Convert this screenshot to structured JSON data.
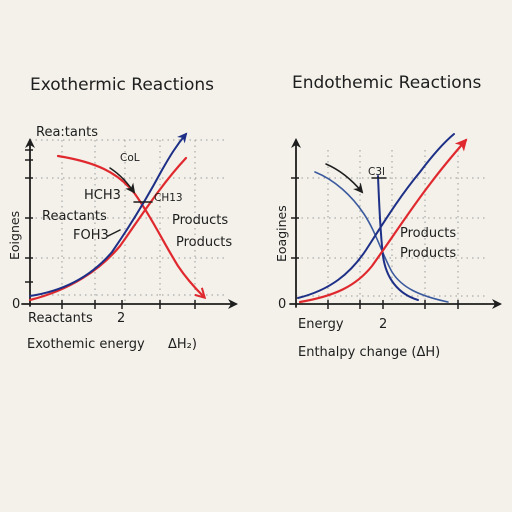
{
  "left_panel": {
    "title": "Exothermic Reactions",
    "top_label": "Rea:tants",
    "y_axis_label": "Eoignes",
    "origin_label": "0",
    "x_tick_label": "2",
    "x_start_label": "Reactants",
    "x_axis_title": "Exothemic energy",
    "x_axis_unit": "ΔH₂)",
    "annotations": {
      "col": "CoL",
      "hch3": "HCH3",
      "ch13": "CH13",
      "reactants": "Reactants",
      "foh3": "FOH3",
      "products_1": "Products",
      "products_2": "Products"
    }
  },
  "right_panel": {
    "title": "Endothemic Reactions",
    "y_axis_label": "Eoagines",
    "origin_label": "0",
    "x_tick_label": "2",
    "x_start_label": "Energy",
    "x_axis_title": "Enthalpy  change (ΔH)",
    "annotations": {
      "c3l": "C3l",
      "products_1": "Products",
      "products_2": "Products"
    }
  },
  "colors": {
    "red": "#e0292e",
    "blue": "#1d2f86",
    "ink": "#1e1e1e",
    "paper": "#f3f1ea"
  }
}
